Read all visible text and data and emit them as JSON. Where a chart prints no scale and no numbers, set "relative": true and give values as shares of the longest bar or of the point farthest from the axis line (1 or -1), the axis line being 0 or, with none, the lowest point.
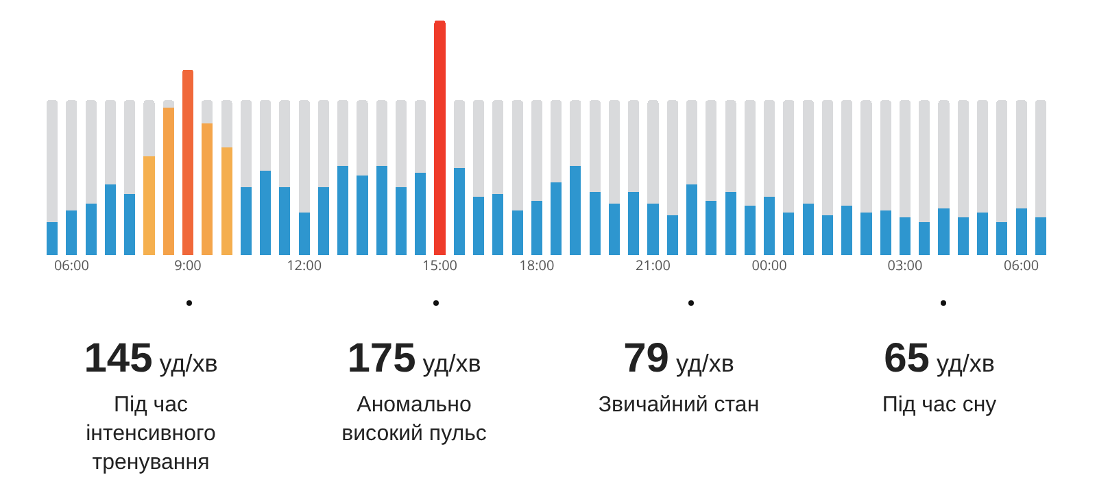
{
  "chart_data": {
    "type": "bar",
    "relative": true,
    "stacked": true,
    "categories": [
      null,
      "06:00",
      null,
      null,
      null,
      null,
      null,
      "9:00",
      null,
      null,
      null,
      null,
      null,
      "12:00",
      null,
      null,
      null,
      null,
      null,
      null,
      "15:00",
      null,
      null,
      null,
      null,
      "18:00",
      null,
      null,
      null,
      null,
      null,
      "21:00",
      null,
      null,
      null,
      null,
      null,
      "00:00",
      null,
      null,
      null,
      null,
      null,
      null,
      "03:00",
      null,
      null,
      null,
      null,
      null,
      "06:00",
      null
    ],
    "series": [
      {
        "colors": [
          "#2e96cf",
          "#2e96cf",
          "#2e96cf",
          "#2e96cf",
          "#2e96cf",
          "#f5b04f",
          "#f4a24a",
          "#f0683a",
          "#f4a54b",
          "#f4ae4e",
          "#2e96cf",
          "#2e96cf",
          "#2e96cf",
          "#2e96cf",
          "#2e96cf",
          "#2e96cf",
          "#2e96cf",
          "#2e96cf",
          "#2e96cf",
          "#2e96cf",
          "#ef3b2a",
          "#2e96cf",
          "#2e96cf",
          "#2e96cf",
          "#2e96cf",
          "#2e96cf",
          "#2e96cf",
          "#2e96cf",
          "#2e96cf",
          "#2e96cf",
          "#2e96cf",
          "#2e96cf",
          "#2e96cf",
          "#2e96cf",
          "#2e96cf",
          "#2e96cf",
          "#2e96cf",
          "#2e96cf",
          "#2e96cf",
          "#2e96cf",
          "#2e96cf",
          "#2e96cf",
          "#2e96cf",
          "#2e96cf",
          "#2e96cf",
          "#2e96cf",
          "#2e96cf",
          "#2e96cf",
          "#2e96cf",
          "#2e96cf",
          "#2e96cf",
          "#2e96cf"
        ],
        "values": [
          0.14,
          0.19,
          0.22,
          0.3,
          0.26,
          0.42,
          0.63,
          0.79,
          0.56,
          0.46,
          0.29,
          0.36,
          0.29,
          0.18,
          0.29,
          0.38,
          0.34,
          0.38,
          0.29,
          0.35,
          1,
          0.37,
          0.25,
          0.26,
          0.19,
          0.23,
          0.31,
          0.38,
          0.27,
          0.22,
          0.27,
          0.22,
          0.17,
          0.3,
          0.23,
          0.27,
          0.21,
          0.25,
          0.18,
          0.22,
          0.17,
          0.21,
          0.18,
          0.19,
          0.16,
          0.14,
          0.2,
          0.16,
          0.18,
          0.14,
          0.2,
          0.16
        ]
      },
      {
        "color": "#d9dadc",
        "values": [
          0.52,
          0.47,
          0.44,
          0.36,
          0.4,
          0.24,
          0.03,
          null,
          0.1,
          0.2,
          0.37,
          0.3,
          0.37,
          0.48,
          0.37,
          0.28,
          0.32,
          0.28,
          0.37,
          0.31,
          null,
          0.29,
          0.41,
          0.4,
          0.47,
          0.43,
          0.35,
          0.28,
          0.39,
          0.44,
          0.39,
          0.44,
          0.49,
          0.36,
          0.43,
          0.39,
          0.45,
          0.41,
          0.48,
          0.44,
          0.49,
          0.45,
          0.48,
          0.47,
          0.5,
          0.52,
          0.46,
          0.5,
          0.48,
          0.52,
          0.46,
          0.5
        ]
      }
    ],
    "annotations": [
      "145 уд/хв",
      "Під час інтенсивного тренування",
      "175 уд/хв",
      "Аномально високий пульс",
      "79 уд/хв",
      "Звичайний стан",
      "65 уд/хв",
      "Під час сну"
    ]
  }
}
